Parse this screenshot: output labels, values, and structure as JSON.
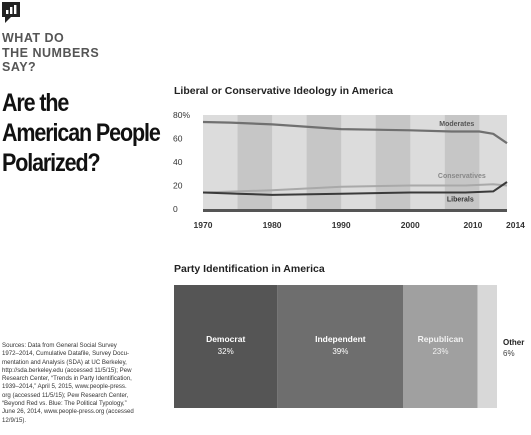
{
  "kicker": [
    "WHAT DO",
    "THE NUMBERS",
    "SAY?"
  ],
  "headline": [
    "Are the",
    "American People",
    "Polarized?"
  ],
  "sources": [
    "Sources: Data from General Social Survey",
    "1972–2014, Cumulative Datafile, Survey Docu-",
    "mentation and Analysis (SDA) at UC Berkeley,",
    "http://sda.berkeley.edu (accessed 11/5/15); Pew",
    "Research Center, “Trends in Party Identification,",
    "1939–2014,” April 5, 2015, www.people-press.",
    "org (accessed 11/5/15); Pew Research Center,",
    "“Beyond Red vs. Blue: The Political Typology,”",
    "June 26, 2014, www.people-press.org (accessed",
    "12/9/15)."
  ],
  "colors": {
    "band_light": "#dcdcdc",
    "band_dark": "#c6c6c6",
    "moderates": "#707070",
    "conservatives": "#a9a9a9",
    "liberals": "#3a3a3a",
    "democrat": "#555555",
    "independent": "#6e6e6e",
    "republican": "#a0a0a0",
    "other": "#d8d8d8"
  },
  "chart_data": [
    {
      "type": "line",
      "title": "Liberal or Conservative Ideology in America",
      "xlabel": "",
      "ylabel": "",
      "xlim": [
        1970,
        2014
      ],
      "ylim": [
        0,
        80
      ],
      "x_ticks": [
        "1970",
        "1980",
        "1990",
        "2000",
        "2010",
        "2014"
      ],
      "y_ticks": [
        "80%",
        "60",
        "40",
        "20",
        "0"
      ],
      "grid": false,
      "series": [
        {
          "name": "Moderates",
          "x": [
            1970,
            1974,
            1980,
            1990,
            2000,
            2006,
            2010,
            2012,
            2014
          ],
          "values": [
            74,
            73.5,
            72,
            68,
            67,
            66,
            66,
            64,
            56
          ]
        },
        {
          "name": "Conservatives",
          "x": [
            1970,
            1975,
            1980,
            1990,
            2000,
            2008,
            2012,
            2014
          ],
          "values": [
            14,
            15,
            16,
            19,
            20,
            20,
            21,
            20
          ]
        },
        {
          "name": "Liberals",
          "x": [
            1970,
            1975,
            1980,
            1990,
            2000,
            2008,
            2012,
            2014
          ],
          "values": [
            14,
            13,
            12,
            13,
            14,
            14,
            15,
            23
          ]
        }
      ]
    },
    {
      "type": "bar",
      "title": "Party Identification in America",
      "categories": [
        "Democrat",
        "Independent",
        "Republican",
        "Other"
      ],
      "values": [
        32,
        39,
        23,
        6
      ],
      "value_labels": [
        "32%",
        "39%",
        "23%",
        "6%"
      ]
    }
  ]
}
